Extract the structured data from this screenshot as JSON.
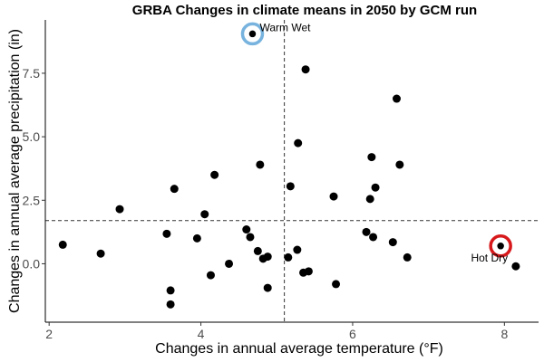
{
  "chart_data": {
    "type": "scatter",
    "title": "GRBA Changes in climate means in 2050 by GCM run",
    "xlabel": "Changes in annual average temperature (°F)",
    "ylabel": "Changes in annual average precipitation (in)",
    "xlim": [
      1.95,
      8.45
    ],
    "ylim": [
      -2.3,
      9.6
    ],
    "xticks": [
      2,
      4,
      6,
      8
    ],
    "yticks": [
      0.0,
      2.5,
      5.0,
      7.5
    ],
    "ytick_labels": [
      "0.0",
      "2.5",
      "5.0",
      "7.5"
    ],
    "xtick_labels": [
      "2",
      "4",
      "6",
      "8"
    ],
    "grid": false,
    "reference_lines": {
      "x": 5.1,
      "y": 1.7
    },
    "points": [
      {
        "x": 2.18,
        "y": 0.75
      },
      {
        "x": 2.68,
        "y": 0.4
      },
      {
        "x": 2.93,
        "y": 2.15
      },
      {
        "x": 3.55,
        "y": 1.18
      },
      {
        "x": 3.6,
        "y": -1.05
      },
      {
        "x": 3.6,
        "y": -1.6
      },
      {
        "x": 3.65,
        "y": 2.95
      },
      {
        "x": 3.95,
        "y": 1.0
      },
      {
        "x": 4.05,
        "y": 1.95
      },
      {
        "x": 4.13,
        "y": -0.45
      },
      {
        "x": 4.18,
        "y": 3.5
      },
      {
        "x": 4.37,
        "y": 0.0
      },
      {
        "x": 4.6,
        "y": 1.35
      },
      {
        "x": 4.65,
        "y": 1.05
      },
      {
        "x": 4.68,
        "y": 9.05
      },
      {
        "x": 4.75,
        "y": 0.5
      },
      {
        "x": 4.78,
        "y": 3.9
      },
      {
        "x": 4.82,
        "y": 0.2
      },
      {
        "x": 4.88,
        "y": 0.28
      },
      {
        "x": 4.88,
        "y": -0.95
      },
      {
        "x": 5.15,
        "y": 0.25
      },
      {
        "x": 5.18,
        "y": 3.05
      },
      {
        "x": 5.27,
        "y": 0.55
      },
      {
        "x": 5.28,
        "y": 4.75
      },
      {
        "x": 5.35,
        "y": -0.35
      },
      {
        "x": 5.38,
        "y": 7.65
      },
      {
        "x": 5.42,
        "y": -0.3
      },
      {
        "x": 5.75,
        "y": 2.65
      },
      {
        "x": 5.78,
        "y": -0.8
      },
      {
        "x": 6.18,
        "y": 1.25
      },
      {
        "x": 6.23,
        "y": 2.55
      },
      {
        "x": 6.25,
        "y": 4.2
      },
      {
        "x": 6.27,
        "y": 1.05
      },
      {
        "x": 6.3,
        "y": 3.0
      },
      {
        "x": 6.53,
        "y": 0.85
      },
      {
        "x": 6.58,
        "y": 6.5
      },
      {
        "x": 6.62,
        "y": 3.9
      },
      {
        "x": 6.72,
        "y": 0.25
      },
      {
        "x": 7.95,
        "y": 0.7
      },
      {
        "x": 8.15,
        "y": -0.1
      }
    ],
    "highlights": [
      {
        "label": "Warm Wet",
        "x": 4.68,
        "y": 9.05,
        "color": "#77B3DE"
      },
      {
        "label": "Hot Dry",
        "x": 7.95,
        "y": 0.7,
        "color": "#D7191C"
      }
    ],
    "point_color": "#000000",
    "refline_color": "#333333"
  }
}
